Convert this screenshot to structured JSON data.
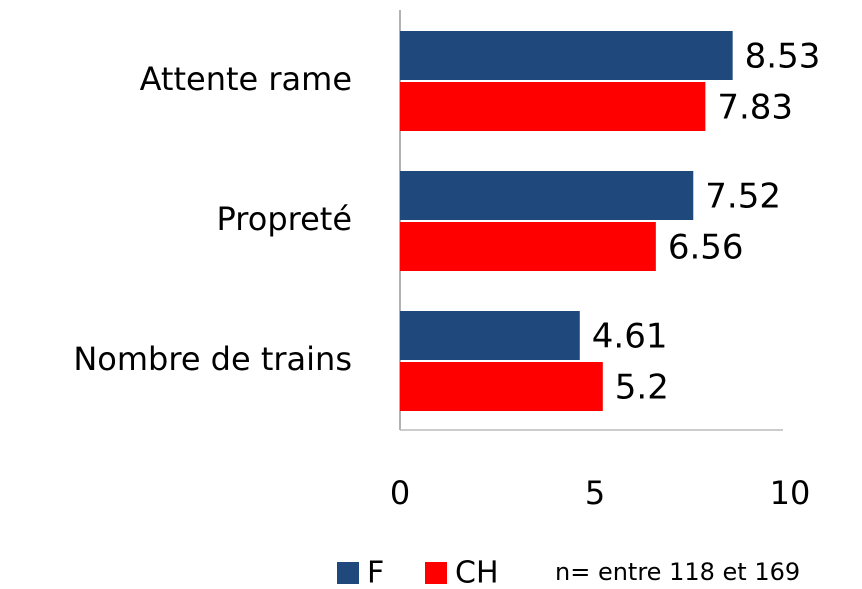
{
  "chart_data": {
    "type": "barh",
    "categories": [
      "Attente rame",
      "Propreté",
      "Nombre de trains"
    ],
    "series": [
      {
        "name": "F",
        "color": "#1f497d",
        "values": [
          8.53,
          7.52,
          4.61
        ]
      },
      {
        "name": "CH",
        "color": "#ff0000",
        "values": [
          7.83,
          6.56,
          5.2
        ]
      }
    ],
    "xlim": [
      0,
      10
    ],
    "xticks": [
      0,
      5,
      10
    ],
    "annotation": "n= entre 118 et 169",
    "legend": "bottom"
  }
}
